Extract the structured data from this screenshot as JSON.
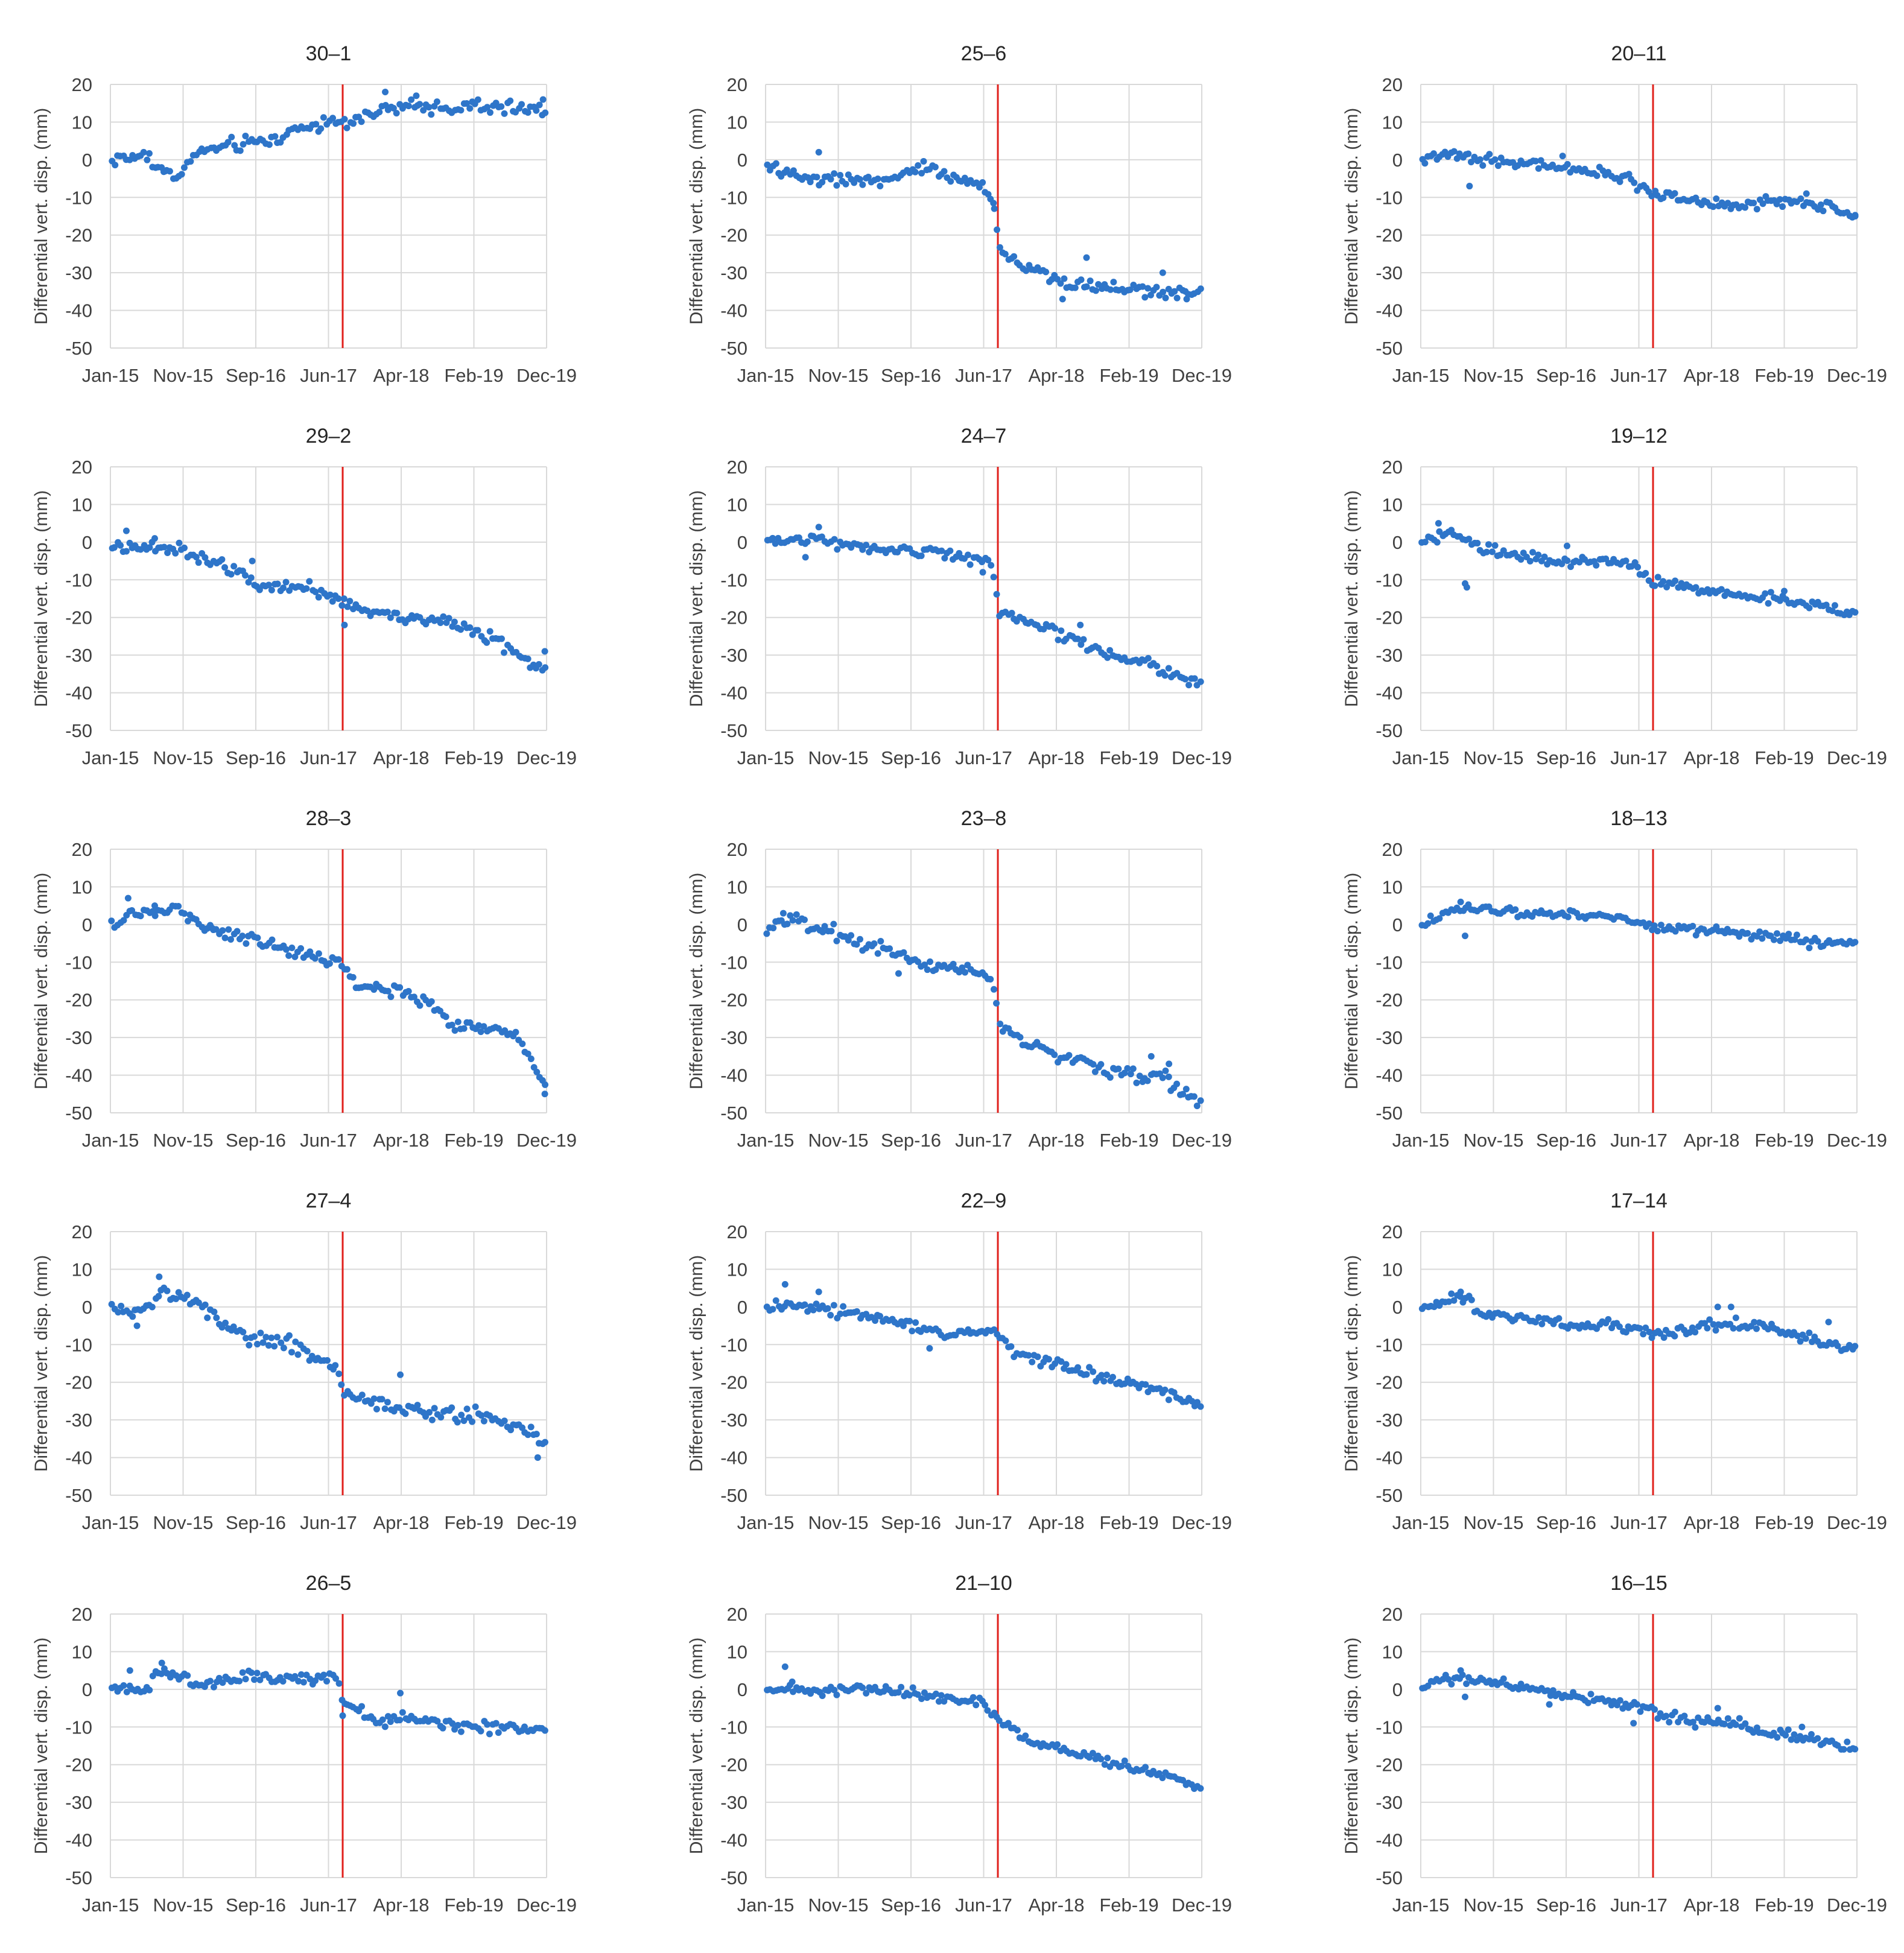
{
  "figure": {
    "ylabel": "Differential vert. disp. (mm)",
    "xticks": [
      "Jan-15",
      "Nov-15",
      "Sep-16",
      "Jun-17",
      "Apr-18",
      "Feb-19",
      "Dec-19"
    ],
    "yticks": [
      20,
      10,
      0,
      -10,
      -20,
      -30,
      -40,
      -50
    ],
    "ylim": [
      -50,
      20
    ],
    "xlim": [
      2015.0,
      2019.92
    ],
    "event_x": 2017.62,
    "colors": {
      "points": "#2e75c9",
      "event_line": "#e0201b",
      "grid": "#d9d9d9",
      "text": "#404040"
    }
  },
  "chart_data": [
    {
      "type": "scatter",
      "title": "30–1",
      "series_name": "30–1",
      "anchors": [
        [
          2015.0,
          0
        ],
        [
          2015.4,
          1
        ],
        [
          2015.7,
          -5
        ],
        [
          2016.0,
          2
        ],
        [
          2016.4,
          4
        ],
        [
          2016.8,
          5
        ],
        [
          2017.2,
          9
        ],
        [
          2017.6,
          10
        ],
        [
          2017.9,
          12
        ],
        [
          2018.3,
          14
        ],
        [
          2018.8,
          14
        ],
        [
          2019.3,
          14
        ],
        [
          2019.92,
          13
        ]
      ],
      "outliers": [
        [
          2015.62,
          -3
        ],
        [
          2018.1,
          18
        ],
        [
          2018.45,
          17
        ],
        [
          2019.88,
          16
        ]
      ],
      "noise": 1.5
    },
    {
      "type": "scatter",
      "title": "25–6",
      "series_name": "25–6",
      "anchors": [
        [
          2015.0,
          -2
        ],
        [
          2015.5,
          -5
        ],
        [
          2016.0,
          -5
        ],
        [
          2016.4,
          -6
        ],
        [
          2016.8,
          -2
        ],
        [
          2017.3,
          -6
        ],
        [
          2017.55,
          -9
        ],
        [
          2017.64,
          -24
        ],
        [
          2017.9,
          -28
        ],
        [
          2018.3,
          -32
        ],
        [
          2018.8,
          -34
        ],
        [
          2019.4,
          -35
        ],
        [
          2019.92,
          -35
        ]
      ],
      "outliers": [
        [
          2015.6,
          2
        ],
        [
          2017.58,
          -13
        ],
        [
          2018.35,
          -37
        ],
        [
          2018.62,
          -26
        ],
        [
          2019.48,
          -30
        ],
        [
          2019.75,
          -37
        ]
      ],
      "noise": 1.4
    },
    {
      "type": "scatter",
      "title": "20–11",
      "series_name": "20–11",
      "anchors": [
        [
          2015.0,
          0
        ],
        [
          2015.4,
          1
        ],
        [
          2015.8,
          0
        ],
        [
          2016.3,
          -1
        ],
        [
          2016.8,
          -3
        ],
        [
          2017.3,
          -5
        ],
        [
          2017.62,
          -9
        ],
        [
          2018.0,
          -11
        ],
        [
          2018.5,
          -12
        ],
        [
          2019.0,
          -11
        ],
        [
          2019.5,
          -12
        ],
        [
          2019.92,
          -15
        ]
      ],
      "outliers": [
        [
          2015.55,
          -7
        ],
        [
          2016.6,
          1
        ],
        [
          2019.35,
          -9
        ],
        [
          2019.9,
          -15
        ]
      ],
      "noise": 1.1
    },
    {
      "type": "scatter",
      "title": "29–2",
      "series_name": "29–2",
      "anchors": [
        [
          2015.0,
          -1
        ],
        [
          2015.4,
          -1
        ],
        [
          2015.9,
          -3
        ],
        [
          2016.3,
          -6
        ],
        [
          2016.7,
          -11
        ],
        [
          2017.2,
          -12
        ],
        [
          2017.6,
          -16
        ],
        [
          2017.8,
          -18
        ],
        [
          2018.3,
          -20
        ],
        [
          2018.8,
          -21
        ],
        [
          2019.3,
          -25
        ],
        [
          2019.92,
          -35
        ]
      ],
      "outliers": [
        [
          2015.18,
          3
        ],
        [
          2015.5,
          1
        ],
        [
          2016.6,
          -5
        ],
        [
          2017.64,
          -22
        ],
        [
          2019.9,
          -29
        ]
      ],
      "noise": 1.4
    },
    {
      "type": "scatter",
      "title": "24–7",
      "series_name": "24–7",
      "anchors": [
        [
          2015.0,
          0
        ],
        [
          2015.5,
          1
        ],
        [
          2016.0,
          -1
        ],
        [
          2016.5,
          -2
        ],
        [
          2017.0,
          -3
        ],
        [
          2017.55,
          -6
        ],
        [
          2017.64,
          -18
        ],
        [
          2017.9,
          -21
        ],
        [
          2018.4,
          -25
        ],
        [
          2018.8,
          -29
        ],
        [
          2019.4,
          -33
        ],
        [
          2019.92,
          -38
        ]
      ],
      "outliers": [
        [
          2015.6,
          4
        ],
        [
          2015.45,
          -4
        ],
        [
          2018.55,
          -22
        ],
        [
          2017.45,
          -8
        ]
      ],
      "noise": 1.3
    },
    {
      "type": "scatter",
      "title": "19–12",
      "series_name": "19–12",
      "anchors": [
        [
          2015.0,
          0
        ],
        [
          2015.3,
          2
        ],
        [
          2015.6,
          -1
        ],
        [
          2016.0,
          -3
        ],
        [
          2016.5,
          -5
        ],
        [
          2017.0,
          -5
        ],
        [
          2017.4,
          -6
        ],
        [
          2017.62,
          -10
        ],
        [
          2018.0,
          -12
        ],
        [
          2018.5,
          -14
        ],
        [
          2019.0,
          -15
        ],
        [
          2019.92,
          -19
        ]
      ],
      "outliers": [
        [
          2015.2,
          5
        ],
        [
          2015.5,
          -11
        ],
        [
          2015.52,
          -12
        ],
        [
          2016.65,
          -1
        ],
        [
          2019.1,
          -13
        ]
      ],
      "noise": 1.2
    },
    {
      "type": "scatter",
      "title": "28–3",
      "series_name": "28–3",
      "anchors": [
        [
          2015.0,
          0
        ],
        [
          2015.4,
          3
        ],
        [
          2015.7,
          4
        ],
        [
          2016.0,
          0
        ],
        [
          2016.5,
          -3
        ],
        [
          2017.0,
          -7
        ],
        [
          2017.55,
          -10
        ],
        [
          2017.8,
          -16
        ],
        [
          2018.3,
          -18
        ],
        [
          2018.6,
          -21
        ],
        [
          2018.8,
          -26
        ],
        [
          2019.3,
          -28
        ],
        [
          2019.6,
          -30
        ],
        [
          2019.92,
          -43
        ]
      ],
      "outliers": [
        [
          2015.2,
          7
        ],
        [
          2015.5,
          5
        ],
        [
          2016.15,
          -1
        ],
        [
          2019.9,
          -45
        ]
      ],
      "noise": 1.3
    },
    {
      "type": "scatter",
      "title": "23–8",
      "series_name": "23–8",
      "anchors": [
        [
          2015.0,
          -1
        ],
        [
          2015.3,
          2
        ],
        [
          2015.6,
          -1
        ],
        [
          2016.0,
          -4
        ],
        [
          2016.5,
          -8
        ],
        [
          2016.9,
          -11
        ],
        [
          2017.3,
          -12
        ],
        [
          2017.55,
          -14
        ],
        [
          2017.64,
          -27
        ],
        [
          2018.0,
          -32
        ],
        [
          2018.5,
          -36
        ],
        [
          2019.0,
          -40
        ],
        [
          2019.5,
          -41
        ],
        [
          2019.92,
          -48
        ]
      ],
      "outliers": [
        [
          2015.2,
          3
        ],
        [
          2016.5,
          -13
        ],
        [
          2019.35,
          -35
        ],
        [
          2019.55,
          -37
        ]
      ],
      "noise": 1.4
    },
    {
      "type": "scatter",
      "title": "18–13",
      "series_name": "18–13",
      "anchors": [
        [
          2015.0,
          0
        ],
        [
          2015.4,
          4
        ],
        [
          2015.8,
          4
        ],
        [
          2016.3,
          3
        ],
        [
          2016.8,
          3
        ],
        [
          2017.2,
          2
        ],
        [
          2017.62,
          -1
        ],
        [
          2018.0,
          -1
        ],
        [
          2018.5,
          -2
        ],
        [
          2019.0,
          -3
        ],
        [
          2019.5,
          -5
        ],
        [
          2019.92,
          -5
        ]
      ],
      "outliers": [
        [
          2015.5,
          -3
        ],
        [
          2015.45,
          6
        ]
      ],
      "noise": 1.0
    },
    {
      "type": "scatter",
      "title": "27–4",
      "series_name": "27–4",
      "anchors": [
        [
          2015.0,
          0
        ],
        [
          2015.3,
          -2
        ],
        [
          2015.6,
          3
        ],
        [
          2016.0,
          1
        ],
        [
          2016.3,
          -5
        ],
        [
          2016.6,
          -9
        ],
        [
          2017.0,
          -10
        ],
        [
          2017.55,
          -16
        ],
        [
          2017.64,
          -23
        ],
        [
          2018.0,
          -25
        ],
        [
          2018.4,
          -27
        ],
        [
          2018.9,
          -29
        ],
        [
          2019.4,
          -30
        ],
        [
          2019.92,
          -36
        ]
      ],
      "outliers": [
        [
          2015.55,
          8
        ],
        [
          2015.3,
          -5
        ],
        [
          2018.27,
          -18
        ],
        [
          2019.82,
          -40
        ]
      ],
      "noise": 1.6
    },
    {
      "type": "scatter",
      "title": "22–9",
      "series_name": "22–9",
      "anchors": [
        [
          2015.0,
          0
        ],
        [
          2015.4,
          0
        ],
        [
          2016.0,
          -2
        ],
        [
          2016.5,
          -4
        ],
        [
          2017.0,
          -7
        ],
        [
          2017.6,
          -7
        ],
        [
          2017.8,
          -12
        ],
        [
          2018.3,
          -15
        ],
        [
          2018.8,
          -19
        ],
        [
          2019.3,
          -21
        ],
        [
          2019.92,
          -26
        ]
      ],
      "outliers": [
        [
          2015.22,
          6
        ],
        [
          2015.6,
          4
        ],
        [
          2016.85,
          -11
        ]
      ],
      "noise": 1.2
    },
    {
      "type": "scatter",
      "title": "17–14",
      "series_name": "17–14",
      "anchors": [
        [
          2015.0,
          0
        ],
        [
          2015.45,
          3
        ],
        [
          2015.7,
          -2
        ],
        [
          2016.2,
          -3
        ],
        [
          2016.7,
          -5
        ],
        [
          2017.2,
          -5
        ],
        [
          2017.62,
          -7
        ],
        [
          2018.0,
          -6
        ],
        [
          2018.4,
          -4
        ],
        [
          2018.8,
          -5
        ],
        [
          2019.2,
          -7
        ],
        [
          2019.6,
          -10
        ],
        [
          2019.92,
          -11
        ]
      ],
      "outliers": [
        [
          2015.45,
          4
        ],
        [
          2018.35,
          0
        ],
        [
          2018.5,
          0
        ],
        [
          2019.6,
          -4
        ]
      ],
      "noise": 1.2
    },
    {
      "type": "scatter",
      "title": "26–5",
      "series_name": "26–5",
      "anchors": [
        [
          2015.0,
          0
        ],
        [
          2015.4,
          0
        ],
        [
          2015.6,
          5
        ],
        [
          2016.0,
          1
        ],
        [
          2016.5,
          3
        ],
        [
          2017.0,
          3
        ],
        [
          2017.55,
          3
        ],
        [
          2017.64,
          -4
        ],
        [
          2018.0,
          -8
        ],
        [
          2018.5,
          -8
        ],
        [
          2019.0,
          -10
        ],
        [
          2019.5,
          -10
        ],
        [
          2019.92,
          -11
        ]
      ],
      "outliers": [
        [
          2015.22,
          5
        ],
        [
          2015.58,
          7
        ],
        [
          2018.27,
          -1
        ],
        [
          2017.62,
          -7
        ]
      ],
      "noise": 1.2
    },
    {
      "type": "scatter",
      "title": "21–10",
      "series_name": "21–10",
      "anchors": [
        [
          2015.0,
          0
        ],
        [
          2015.5,
          0
        ],
        [
          2016.0,
          0
        ],
        [
          2016.5,
          -1
        ],
        [
          2017.0,
          -2
        ],
        [
          2017.4,
          -3
        ],
        [
          2017.62,
          -7
        ],
        [
          2017.9,
          -13
        ],
        [
          2018.4,
          -16
        ],
        [
          2018.9,
          -20
        ],
        [
          2019.4,
          -22
        ],
        [
          2019.92,
          -26
        ]
      ],
      "outliers": [
        [
          2015.22,
          6
        ],
        [
          2015.3,
          2
        ]
      ],
      "noise": 1.1
    },
    {
      "type": "scatter",
      "title": "16–15",
      "series_name": "16–15",
      "anchors": [
        [
          2015.0,
          1
        ],
        [
          2015.4,
          3
        ],
        [
          2015.8,
          2
        ],
        [
          2016.3,
          0
        ],
        [
          2016.8,
          -2
        ],
        [
          2017.3,
          -4
        ],
        [
          2017.62,
          -6
        ],
        [
          2018.0,
          -8
        ],
        [
          2018.5,
          -9
        ],
        [
          2019.0,
          -12
        ],
        [
          2019.5,
          -14
        ],
        [
          2019.92,
          -15
        ]
      ],
      "outliers": [
        [
          2015.5,
          -2
        ],
        [
          2015.45,
          5
        ],
        [
          2016.45,
          -4
        ],
        [
          2017.4,
          -9
        ],
        [
          2018.35,
          -5
        ],
        [
          2019.3,
          -10
        ]
      ],
      "noise": 1.2
    }
  ]
}
